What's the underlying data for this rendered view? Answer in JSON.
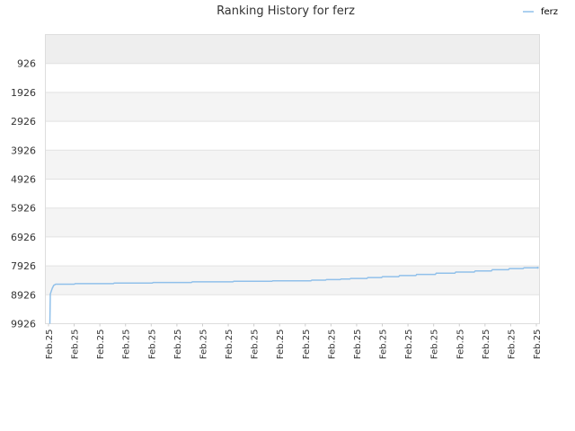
{
  "chart_data": {
    "type": "line",
    "title": "Ranking History for ferz",
    "xlabel": "",
    "ylabel": "",
    "y_inverted": true,
    "ylim": [
      9926,
      -74
    ],
    "y_ticks": [
      "926",
      "1926",
      "2926",
      "3926",
      "4926",
      "5926",
      "6926",
      "7926",
      "8926",
      "9926"
    ],
    "x_ticks": [
      "Feb.25",
      "Feb.25",
      "Feb.25",
      "Feb.25",
      "Feb.25",
      "Feb.25",
      "Feb.25",
      "Feb.25",
      "Feb.25",
      "Feb.25",
      "Feb.25",
      "Feb.25",
      "Feb.25",
      "Feb.25",
      "Feb.25",
      "Feb.25",
      "Feb.25",
      "Feb.25",
      "Feb.25",
      "Feb.25"
    ],
    "legend": {
      "position": "top-right"
    },
    "grid": true,
    "series": [
      {
        "name": "ferz",
        "color": "#90c0ea",
        "x": [
          0.0,
          0.001,
          0.003,
          0.005,
          0.008,
          0.012,
          0.02,
          0.05,
          0.052,
          0.13,
          0.132,
          0.21,
          0.212,
          0.29,
          0.292,
          0.375,
          0.377,
          0.455,
          0.457,
          0.535,
          0.537,
          0.565,
          0.567,
          0.595,
          0.597,
          0.615,
          0.617,
          0.65,
          0.652,
          0.68,
          0.682,
          0.715,
          0.717,
          0.75,
          0.752,
          0.79,
          0.792,
          0.83,
          0.832,
          0.87,
          0.872,
          0.905,
          0.907,
          0.94,
          0.942,
          0.97,
          0.972,
          1.0
        ],
        "values": [
          9926,
          8900,
          8800,
          8700,
          8600,
          8560,
          8560,
          8560,
          8540,
          8540,
          8520,
          8520,
          8500,
          8500,
          8480,
          8480,
          8460,
          8460,
          8440,
          8440,
          8420,
          8420,
          8400,
          8400,
          8380,
          8380,
          8360,
          8360,
          8330,
          8330,
          8300,
          8300,
          8260,
          8260,
          8220,
          8220,
          8180,
          8180,
          8140,
          8140,
          8100,
          8100,
          8060,
          8060,
          8020,
          8020,
          7990,
          7990
        ]
      }
    ]
  }
}
